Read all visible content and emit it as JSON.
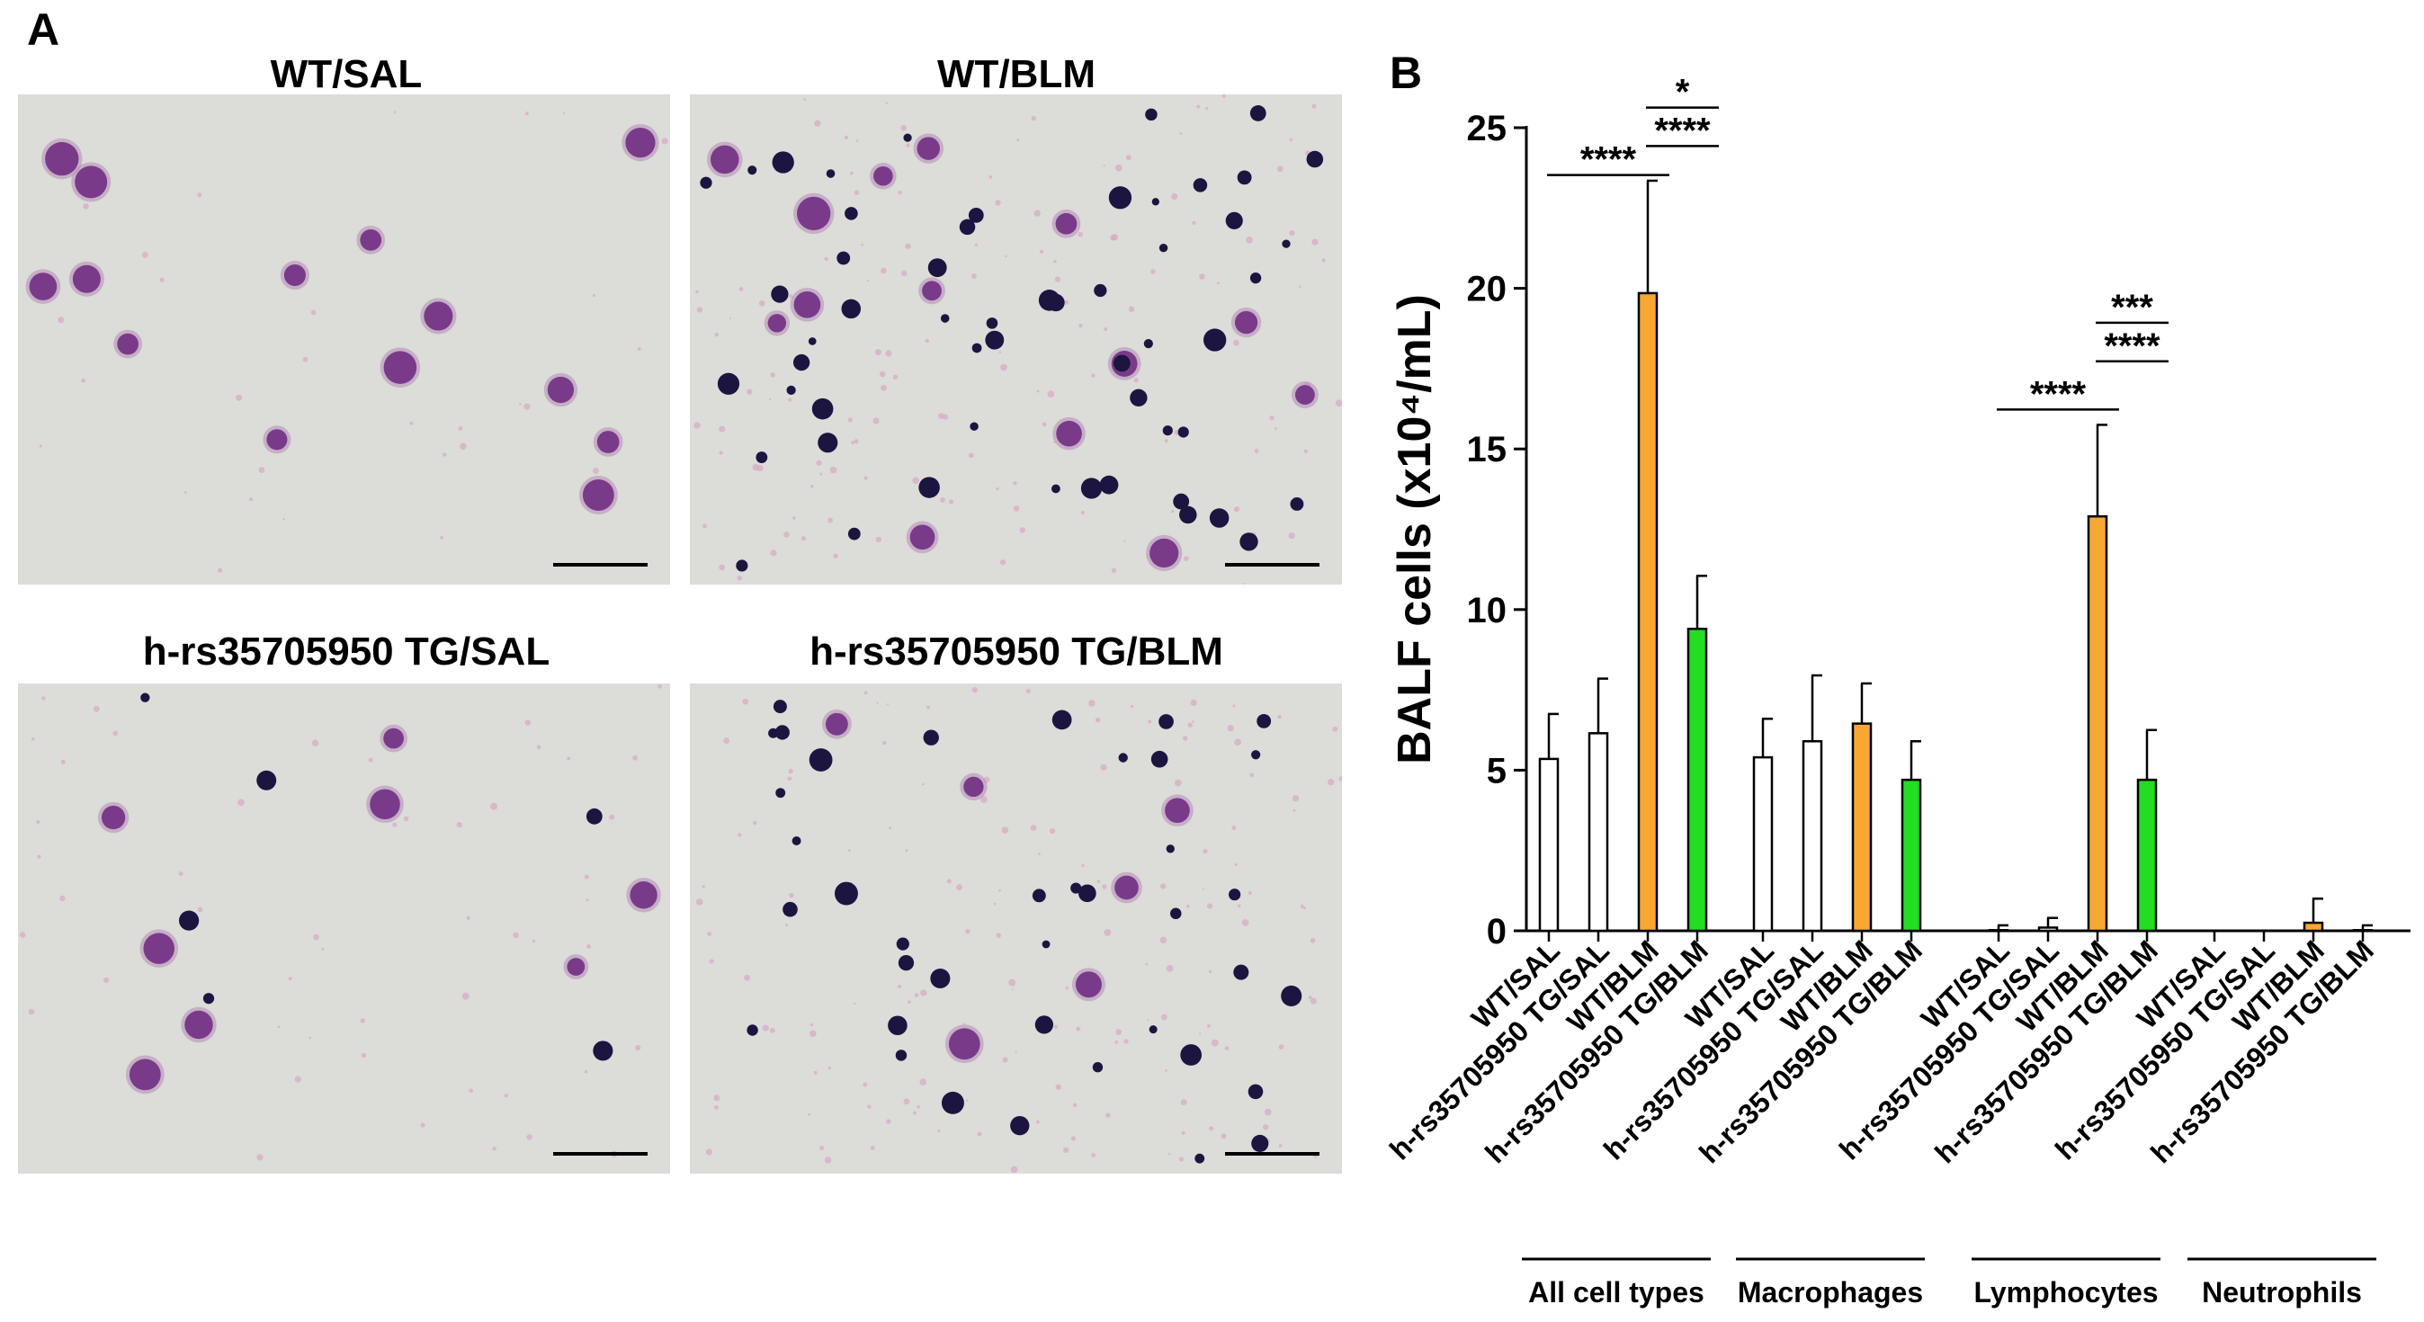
{
  "panel_a": {
    "letter": "A",
    "images": [
      {
        "title": "WT/SAL"
      },
      {
        "title": "WT/BLM"
      },
      {
        "title": "h-rs35705950 TG/SAL"
      },
      {
        "title": "h-rs35705950 TG/BLM"
      }
    ]
  },
  "panel_b": {
    "letter": "B"
  },
  "colors": {
    "white_bar": "#ffffff",
    "orange_bar": "#f7a833",
    "green_bar": "#22dd22",
    "stain_purple": "#7a3a8a",
    "stain_dark": "#1b1540",
    "background_grey": "#dcdcd8"
  },
  "chart_data": {
    "type": "bar",
    "ylabel": "BALF cells (x10⁴/mL)",
    "ylim": [
      0,
      25
    ],
    "yticks": [
      "0",
      "5",
      "10",
      "15",
      "20",
      "25"
    ],
    "group_labels": [
      "All cell types",
      "Macrophages",
      "Lymphocytes",
      "Neutrophils"
    ],
    "bar_labels": [
      "WT/SAL",
      "h-rs35705950 TG/SAL",
      "WT/BLM",
      "h-rs35705950 TG/BLM"
    ],
    "bar_colors": [
      "white",
      "white",
      "orange",
      "green"
    ],
    "groups": [
      {
        "values": [
          5.35,
          6.15,
          19.85,
          9.4
        ],
        "errors": [
          1.4,
          1.7,
          3.5,
          1.65
        ]
      },
      {
        "values": [
          5.4,
          5.9,
          6.45,
          4.7
        ],
        "errors": [
          1.2,
          2.05,
          1.25,
          1.2
        ]
      },
      {
        "values": [
          0.02,
          0.1,
          12.9,
          4.7
        ],
        "errors": [
          0.15,
          0.3,
          2.85,
          1.55
        ]
      },
      {
        "values": [
          0.0,
          0.0,
          0.25,
          0.02
        ],
        "errors": [
          0.0,
          0.0,
          0.75,
          0.15
        ]
      }
    ],
    "significance": [
      {
        "label": "****",
        "group": 0,
        "from": 0,
        "to": 2,
        "y": 24.2
      },
      {
        "label": "*",
        "group": 0,
        "from": 2,
        "to": 3,
        "y": 26.3
      },
      {
        "label": "****",
        "group": 0,
        "from": 2,
        "to": 3,
        "y": 25.1
      },
      {
        "label": "****",
        "group": 2,
        "from": 0,
        "to": 2,
        "y": 16.9
      },
      {
        "label": "***",
        "group": 2,
        "from": 2,
        "to": 3,
        "y": 19.6
      },
      {
        "label": "****",
        "group": 2,
        "from": 2,
        "to": 3,
        "y": 18.4
      }
    ]
  }
}
